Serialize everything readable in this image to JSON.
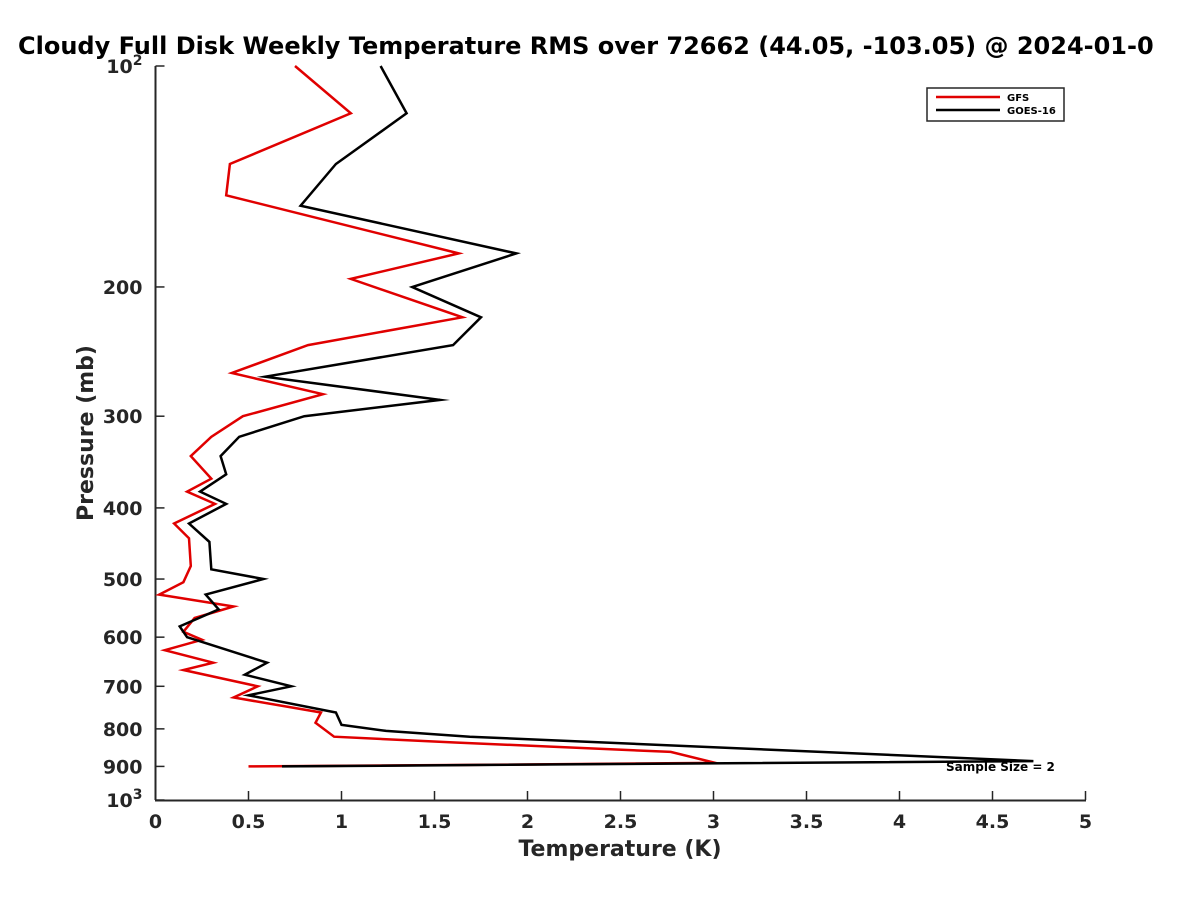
{
  "chart_data": {
    "type": "line",
    "title": "Cloudy Full Disk Weekly Temperature RMS over 72662 (44.05, -103.05) @ 2024-01-0",
    "xlabel": "Temperature (K)",
    "ylabel": "Pressure (mb)",
    "xlim": [
      0,
      5
    ],
    "ylim": [
      100,
      1000
    ],
    "y_scale": "log",
    "y_reversed": true,
    "grid": false,
    "legend_position": "top-right",
    "x_ticks": [
      "0",
      "0.5",
      "1",
      "1.5",
      "2",
      "2.5",
      "3",
      "3.5",
      "4",
      "4.5",
      "5"
    ],
    "y_ticks": [
      {
        "value": 100,
        "base": "10",
        "exp": "2"
      },
      {
        "value": 200,
        "label": "200"
      },
      {
        "value": 300,
        "label": "300"
      },
      {
        "value": 400,
        "label": "400"
      },
      {
        "value": 500,
        "label": "500"
      },
      {
        "value": 600,
        "label": "600"
      },
      {
        "value": 700,
        "label": "700"
      },
      {
        "value": 800,
        "label": "800"
      },
      {
        "value": 900,
        "label": "900"
      },
      {
        "value": 1000,
        "base": "10",
        "exp": "3"
      }
    ],
    "annotation": "Sample Size = 2",
    "series": [
      {
        "name": "GFS",
        "color": "#e00000",
        "points": [
          [
            0.75,
            100
          ],
          [
            1.05,
            116
          ],
          [
            0.4,
            136
          ],
          [
            0.38,
            150
          ],
          [
            1.63,
            180
          ],
          [
            1.05,
            195
          ],
          [
            1.65,
            220
          ],
          [
            0.82,
            240
          ],
          [
            0.41,
            262
          ],
          [
            0.9,
            280
          ],
          [
            0.47,
            300
          ],
          [
            0.3,
            320
          ],
          [
            0.19,
            340
          ],
          [
            0.3,
            365
          ],
          [
            0.17,
            380
          ],
          [
            0.32,
            395
          ],
          [
            0.1,
            420
          ],
          [
            0.18,
            440
          ],
          [
            0.19,
            480
          ],
          [
            0.15,
            505
          ],
          [
            0.02,
            525
          ],
          [
            0.42,
            545
          ],
          [
            0.21,
            565
          ],
          [
            0.15,
            590
          ],
          [
            0.25,
            605
          ],
          [
            0.05,
            625
          ],
          [
            0.31,
            650
          ],
          [
            0.15,
            665
          ],
          [
            0.55,
            700
          ],
          [
            0.42,
            725
          ],
          [
            0.89,
            760
          ],
          [
            0.86,
            785
          ],
          [
            0.96,
            820
          ],
          [
            1.61,
            835
          ],
          [
            2.77,
            860
          ],
          [
            3.01,
            890
          ],
          [
            1.9,
            895
          ],
          [
            0.5,
            900
          ]
        ]
      },
      {
        "name": "GOES-16",
        "color": "#000000",
        "points": [
          [
            1.21,
            100
          ],
          [
            1.35,
            116
          ],
          [
            0.97,
            136
          ],
          [
            0.78,
            155
          ],
          [
            1.94,
            180
          ],
          [
            1.38,
            200
          ],
          [
            1.75,
            220
          ],
          [
            1.6,
            240
          ],
          [
            0.59,
            265
          ],
          [
            1.53,
            285
          ],
          [
            0.8,
            300
          ],
          [
            0.45,
            320
          ],
          [
            0.35,
            340
          ],
          [
            0.38,
            360
          ],
          [
            0.24,
            380
          ],
          [
            0.38,
            395
          ],
          [
            0.18,
            420
          ],
          [
            0.29,
            445
          ],
          [
            0.3,
            485
          ],
          [
            0.58,
            500
          ],
          [
            0.27,
            525
          ],
          [
            0.34,
            550
          ],
          [
            0.13,
            580
          ],
          [
            0.17,
            600
          ],
          [
            0.6,
            650
          ],
          [
            0.48,
            675
          ],
          [
            0.73,
            700
          ],
          [
            0.5,
            720
          ],
          [
            0.97,
            760
          ],
          [
            1.0,
            790
          ],
          [
            1.24,
            805
          ],
          [
            1.69,
            820
          ],
          [
            4.72,
            885
          ],
          [
            0.68,
            900
          ]
        ]
      }
    ]
  }
}
